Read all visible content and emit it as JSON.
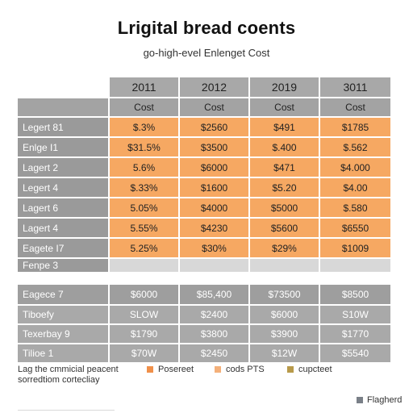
{
  "title": "Lrigital bread coents",
  "subtitle": "go-high-evel Enlenget Cost",
  "years": [
    "2011",
    "2012",
    "2019",
    "3011"
  ],
  "cost_header": [
    "Cost",
    "Cost",
    "Cost",
    "Cost"
  ],
  "orange_rows": [
    {
      "label": "Legert 81",
      "values": [
        "$.3%",
        "$2560",
        "$491",
        "$1785"
      ]
    },
    {
      "label": "Enlge I1",
      "values": [
        "$31.5%",
        "$3500",
        "$.400",
        "$.562"
      ]
    },
    {
      "label": "Lagert 2",
      "values": [
        "5.6%",
        "$6000",
        "$471",
        "$4.000"
      ]
    },
    {
      "label": "Legert 4",
      "values": [
        "$.33%",
        "$1600",
        "$5.20",
        "$4.00"
      ]
    },
    {
      "label": "Lagert 6",
      "values": [
        "5.05%",
        "$4000",
        "$5000",
        "$.580"
      ]
    },
    {
      "label": "Lagert 4",
      "values": [
        "5.55%",
        "$4230",
        "$5600",
        "$6550"
      ]
    },
    {
      "label": "Eagete I7",
      "values": [
        "5.25%",
        "$30%",
        "$29%",
        "$1009"
      ]
    }
  ],
  "plain_row": {
    "label": "Fenpe 3"
  },
  "grey_rows": [
    {
      "label": "Eagece 7",
      "values": [
        "$6000",
        "$85,400",
        "$73500",
        "$8500"
      ]
    },
    {
      "label": "Tiboefy",
      "values": [
        "SLOW",
        "$2400",
        "$6000",
        "S10W"
      ]
    },
    {
      "label": "Texerbay 9",
      "values": [
        "$1790",
        "$3800",
        "$3900",
        "$1770"
      ]
    },
    {
      "label": "Tilioe 1",
      "values": [
        "$70W",
        "$2450",
        "$12W",
        "$5540"
      ]
    }
  ],
  "footer": {
    "note_line1": "Lag the cmmicial peacent",
    "note_line2": "sorredtiom cortecliay",
    "legend": [
      {
        "label": "Posereet",
        "color": "#f0904a"
      },
      {
        "label": "cods PTS",
        "color": "#f4b07a"
      },
      {
        "label": "cupcteet",
        "color": "#b89a4a"
      }
    ],
    "corner_legend": {
      "label": "Flagherd",
      "color": "#7a8088"
    }
  }
}
